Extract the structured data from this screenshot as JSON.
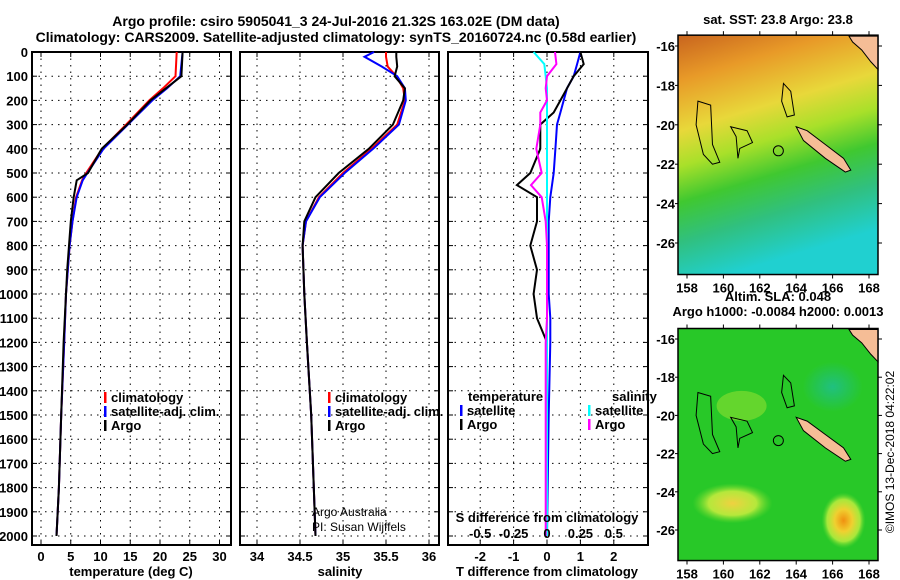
{
  "title": {
    "line1": "Argo profile: csiro 5905041_3 24-Jul-2016 21.32S 163.02E (DM data)",
    "line2": "Climatology: CARS2009. Satellite-adjusted climatology: synTS_20160724.nc (0.58d earlier)"
  },
  "credits": {
    "line1": "Argo Australia",
    "line2": "PI: Susan Wijffels"
  },
  "watermark": "©IMOS 13-Dec-2018 04:22:02",
  "colors": {
    "climatology": "#ff0000",
    "satellite": "#0000ff",
    "argo": "#000000",
    "sal_satellite": "#00ffff",
    "sal_argo": "#ff00ff",
    "land": "#f5bd96"
  },
  "chart_data": [
    {
      "type": "line",
      "id": "temperature",
      "xlabel": "temperature (deg C)",
      "ylabel": "",
      "xlim": [
        -1.5,
        31.5
      ],
      "ylim": [
        2000,
        0
      ],
      "xticks": [
        "0",
        "5",
        "10",
        "15",
        "20",
        "25",
        "30"
      ],
      "yticks": [
        "0",
        "100",
        "200",
        "300",
        "400",
        "500",
        "600",
        "700",
        "800",
        "900",
        "1000",
        "1100",
        "1200",
        "1300",
        "1400",
        "1500",
        "1600",
        "1700",
        "1800",
        "1900",
        "2000"
      ],
      "legend": [
        "climatology",
        "satellite-adj. clim.",
        "Argo"
      ],
      "depth": [
        0,
        100,
        150,
        200,
        300,
        400,
        500,
        530,
        600,
        700,
        800,
        900,
        1000,
        1200,
        1500,
        1800,
        2000
      ],
      "series": [
        {
          "name": "climatology",
          "values": [
            22.8,
            22.6,
            20.5,
            18.2,
            14.3,
            10.3,
            7.6,
            6.9,
            5.9,
            5.3,
            4.8,
            4.5,
            4.2,
            3.9,
            3.4,
            3.0,
            2.6
          ]
        },
        {
          "name": "satellite-adj. clim.",
          "values": [
            23.8,
            23.4,
            21.2,
            18.7,
            14.6,
            10.5,
            7.8,
            7.0,
            6.0,
            5.3,
            4.8,
            4.5,
            4.2,
            3.9,
            3.4,
            3.0,
            2.6
          ]
        },
        {
          "name": "Argo",
          "values": [
            23.8,
            23.6,
            21.0,
            18.4,
            14.5,
            10.2,
            7.9,
            6.0,
            5.5,
            5.0,
            4.7,
            4.4,
            4.2,
            3.8,
            3.4,
            3.0,
            2.6
          ]
        }
      ]
    },
    {
      "type": "line",
      "id": "salinity",
      "xlabel": "salinity",
      "xlim": [
        33.8,
        36.1
      ],
      "ylim": [
        2000,
        0
      ],
      "xticks": [
        "34",
        "34.5",
        "35",
        "35.5",
        "36"
      ],
      "legend": [
        "climatology",
        "satellite-adj. clim.",
        "Argo"
      ],
      "depth": [
        0,
        20,
        60,
        100,
        150,
        200,
        300,
        400,
        500,
        600,
        700,
        800,
        1000,
        1200,
        1500,
        1800,
        2000
      ],
      "series": [
        {
          "name": "climatology",
          "values": [
            35.5,
            35.5,
            35.52,
            35.62,
            35.7,
            35.72,
            35.63,
            35.33,
            35.0,
            34.72,
            34.57,
            34.53,
            34.55,
            34.58,
            34.63,
            34.66,
            34.68
          ]
        },
        {
          "name": "satellite-adj. clim.",
          "values": [
            35.36,
            35.25,
            35.45,
            35.63,
            35.72,
            35.73,
            35.65,
            35.35,
            35.02,
            34.73,
            34.57,
            34.53,
            34.55,
            34.58,
            34.63,
            34.66,
            34.68
          ]
        },
        {
          "name": "Argo",
          "values": [
            35.62,
            35.62,
            35.63,
            35.6,
            35.72,
            35.7,
            35.58,
            35.3,
            34.95,
            34.68,
            34.55,
            34.53,
            34.55,
            34.58,
            34.63,
            34.66,
            34.68
          ]
        }
      ]
    },
    {
      "type": "line",
      "id": "difference",
      "xlabel": "T difference from climatology",
      "xlabel2": "S difference from climatology",
      "xlim": [
        -3,
        3
      ],
      "x2lim": [
        -0.75,
        0.75
      ],
      "ylim": [
        2000,
        0
      ],
      "xticks": [
        "-2",
        "-1",
        "0",
        "1",
        "2"
      ],
      "x2ticks": [
        "-0.5",
        "-0.25",
        "0",
        "0.25",
        "0.5"
      ],
      "legend_t": {
        "heading": "temperature",
        "items": [
          "satellite",
          "Argo"
        ]
      },
      "legend_s": {
        "heading": "salinity",
        "items": [
          "satellite",
          "Argo"
        ]
      },
      "depth": [
        0,
        50,
        100,
        150,
        200,
        250,
        300,
        400,
        500,
        550,
        600,
        700,
        800,
        900,
        1000,
        1100,
        1200,
        1500,
        2000
      ],
      "series": [
        {
          "name": "T satellite",
          "values": [
            1.0,
            0.9,
            0.8,
            0.6,
            0.5,
            0.4,
            0.3,
            0.25,
            0.2,
            0.15,
            0.1,
            0.05,
            0.05,
            0.05,
            0.05,
            0.1,
            0.1,
            0.05,
            0.0
          ]
        },
        {
          "name": "T Argo",
          "values": [
            1.0,
            1.1,
            0.8,
            0.6,
            0.4,
            0.2,
            -0.2,
            -0.2,
            -0.5,
            -0.9,
            -0.3,
            -0.3,
            -0.5,
            -0.3,
            -0.4,
            -0.3,
            0.0,
            0.0,
            0.0
          ]
        },
        {
          "name": "S satellite",
          "values": [
            -0.1,
            -0.02,
            -0.01,
            0.0,
            0.0,
            0.0,
            0.0,
            0.0,
            0.0,
            0.0,
            0.0,
            0.0,
            0.0,
            0.0,
            0.0,
            0.0,
            0.0,
            0.0,
            0.0
          ]
        },
        {
          "name": "S Argo",
          "values": [
            0.06,
            0.07,
            0.0,
            -0.01,
            0.0,
            -0.05,
            -0.05,
            -0.08,
            -0.04,
            -0.12,
            -0.04,
            -0.01,
            0.0,
            0.0,
            0.0,
            0.0,
            -0.01,
            -0.01,
            -0.01
          ]
        }
      ]
    },
    {
      "type": "heatmap",
      "id": "sst-map",
      "title": "sat. SST: 23.8 Argo: 23.8",
      "xlim": [
        157.5,
        168.5
      ],
      "ylim": [
        -27.5,
        -15.5
      ],
      "xticks": [
        "158",
        "160",
        "162",
        "164",
        "166",
        "168"
      ],
      "yticks": [
        "-16",
        "-18",
        "-20",
        "-22",
        "-24",
        "-26"
      ],
      "argo_position": {
        "lon": 163.02,
        "lat": -21.32
      }
    },
    {
      "type": "heatmap",
      "id": "sla-map",
      "title": "Altim. SLA: 0.048",
      "subtitle": "Argo h1000: -0.0084 h2000: 0.0013",
      "xlim": [
        157.5,
        168.5
      ],
      "ylim": [
        -27.5,
        -15.5
      ],
      "xticks": [
        "158",
        "160",
        "162",
        "164",
        "166",
        "168"
      ],
      "yticks": [
        "-16",
        "-18",
        "-20",
        "-22",
        "-24",
        "-26"
      ],
      "argo_position": {
        "lon": 163.02,
        "lat": -21.32
      }
    }
  ]
}
